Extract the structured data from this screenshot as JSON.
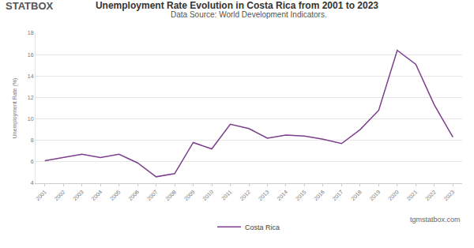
{
  "chart_data": {
    "type": "line",
    "title": "Unemployment Rate Evolution in Costa Rica from 2001 to 2023",
    "subtitle": "Data Source: World Development Indicators.",
    "logo": "STATBOX",
    "footer": "tgmstatbox.com",
    "y_label": "Unemployment Rate (%)",
    "categories": [
      "2001",
      "2002",
      "2003",
      "2004",
      "2005",
      "2006",
      "2007",
      "2008",
      "2009",
      "2010",
      "2011",
      "2012",
      "2013",
      "2014",
      "2015",
      "2016",
      "2017",
      "2018",
      "2019",
      "2020",
      "2021",
      "2022",
      "2023"
    ],
    "series": [
      {
        "name": "Costa Rica",
        "color": "#7b3f8c",
        "values": [
          6.1,
          6.4,
          6.7,
          6.4,
          6.7,
          5.9,
          4.6,
          4.9,
          7.8,
          7.2,
          9.5,
          9.1,
          8.2,
          8.5,
          8.4,
          8.1,
          7.7,
          9.0,
          10.8,
          16.4,
          15.1,
          11.3,
          8.3
        ]
      }
    ],
    "ylim": [
      4,
      18
    ],
    "yticks": [
      4,
      6,
      8,
      10,
      12,
      14,
      16,
      18
    ],
    "grid": true,
    "legend": "bottom"
  }
}
